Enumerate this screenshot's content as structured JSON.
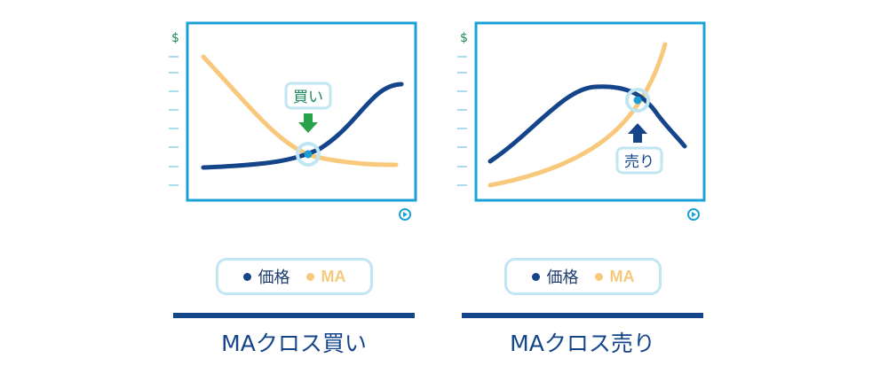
{
  "colors": {
    "frame": "#1aa2d6",
    "price": "#14458a",
    "ma": "#f8c97c",
    "buy_arrow": "#2aa24a",
    "sell_arrow": "#14458a",
    "highlight": "#bfe6f2",
    "cross_dot": "#1a9fd4",
    "dollar": "#1e8a5a",
    "tick": "#a9dcec"
  },
  "panels": [
    {
      "y_axis_symbol": "$",
      "signal_label": "買い",
      "signal_direction": "down",
      "legend": {
        "price_label": "価格",
        "ma_label": "MA"
      },
      "caption": "MAクロス買い"
    },
    {
      "y_axis_symbol": "$",
      "signal_label": "売り",
      "signal_direction": "up",
      "legend": {
        "price_label": "価格",
        "ma_label": "MA"
      },
      "caption": "MAクロス売り"
    }
  ]
}
